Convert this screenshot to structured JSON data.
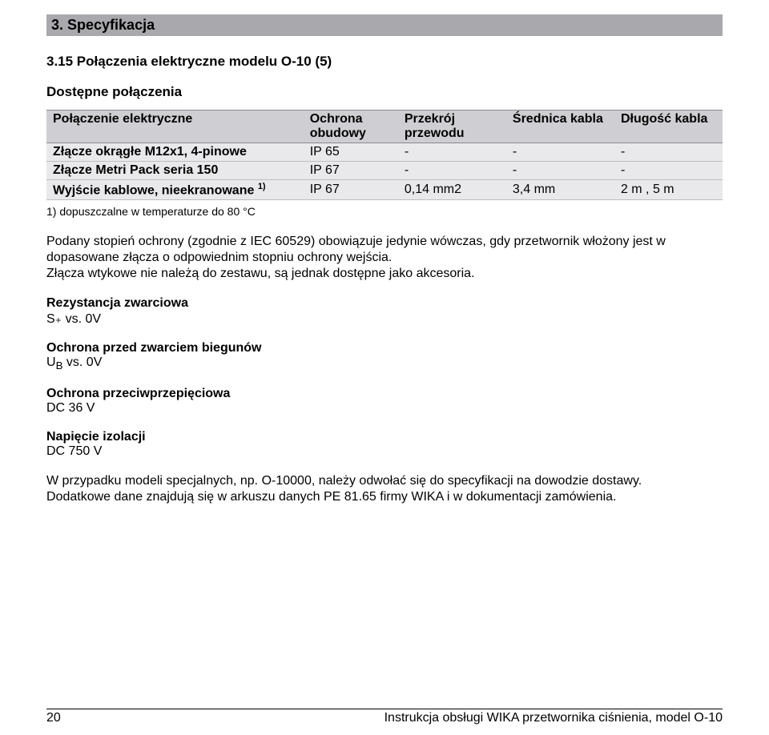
{
  "section_header": "3. Specyfikacja",
  "subsection_title": "3.15 Połączenia elektryczne modelu O-10 (5)",
  "table_title": "Dostępne połączenia",
  "table": {
    "columns": [
      "Połączenie elektryczne",
      "Ochrona obudowy",
      "Przekrój przewodu",
      "Średnica kabla",
      "Długość kabla"
    ],
    "col_widths": [
      "38%",
      "14%",
      "16%",
      "16%",
      "16%"
    ],
    "rows": [
      [
        "Złącze okrągłe M12x1, 4-pinowe",
        "IP 65",
        "-",
        "-",
        "-"
      ],
      [
        "Złącze Metri Pack seria 150",
        "IP 67",
        "-",
        "-",
        "-"
      ],
      [
        "Wyjście kablowe, nieekranowane 1)",
        "IP 67",
        "0,14 mm2",
        "3,4 mm",
        "2 m , 5 m"
      ]
    ],
    "header_bg": "#cfcfd3",
    "row_bg": "#e9e9eb",
    "header_border": "#8a8a8e",
    "row_border": "#bdbdc2"
  },
  "footnote": "1) dopuszczalne w temperaturze do 80 °C",
  "paragraph": "Podany stopień ochrony (zgodnie z IEC 60529) obowiązuje jedynie wówczas, gdy przetwornik włożony jest w dopasowane złącza o odpowiednim stopniu ochrony wejścia.\nZłącza wtykowe nie należą do zestawu, są jednak dostępne jako akcesoria.",
  "blocks": [
    {
      "title": "Rezystancja zwarciowa",
      "value": "S₊ vs. 0V"
    },
    {
      "title": "Ochrona przed zwarciem biegunów",
      "value": "U_B vs. 0V"
    },
    {
      "title": "Ochrona przeciwprzepięciowa",
      "value": "DC 36 V"
    },
    {
      "title": "Napięcie izolacji",
      "value": "DC 750 V"
    }
  ],
  "closing": "W przypadku modeli specjalnych, np. O-10000, należy odwołać się do specyfikacji na dowodzie dostawy.\nDodatkowe dane znajdują się w arkuszu danych PE 81.65 firmy WIKA i w dokumentacji zamówienia.",
  "footer": {
    "page": "20",
    "text": "Instrukcja obsługi WIKA przetwornika ciśnienia, model O-10"
  }
}
